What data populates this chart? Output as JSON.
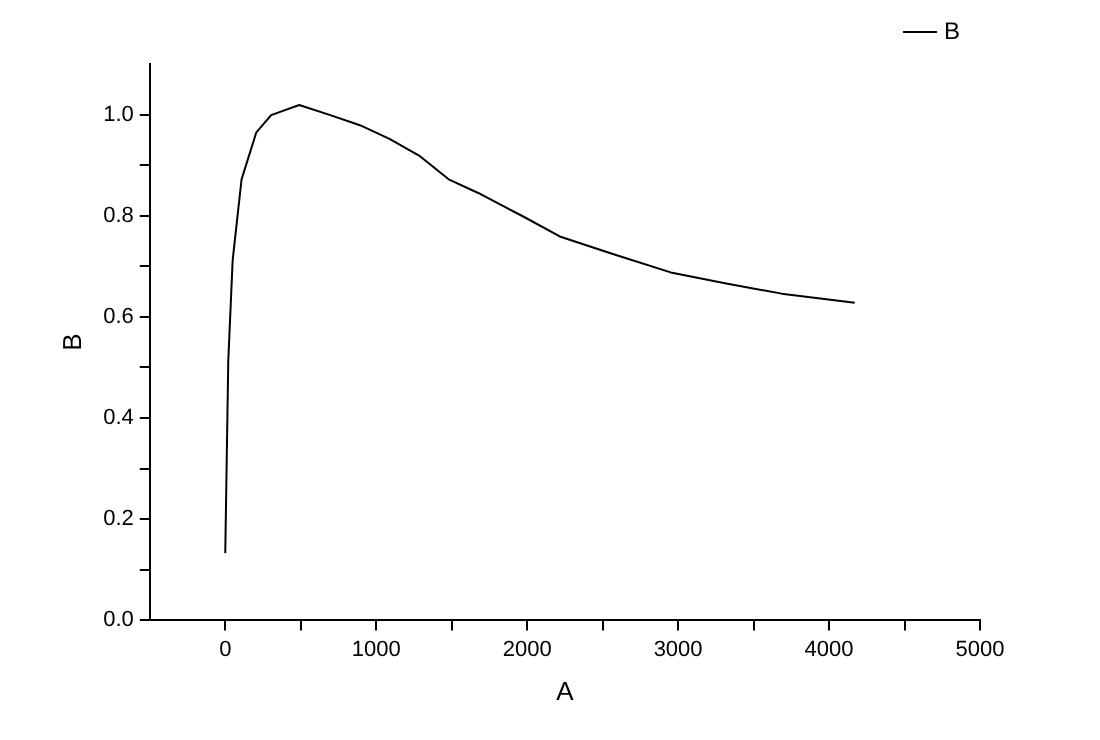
{
  "chart_data": {
    "type": "line",
    "xlabel": "A",
    "ylabel": "B",
    "x": [
      0,
      20,
      49,
      108,
      206,
      304,
      490,
      696,
      892,
      1088,
      1284,
      1480,
      1676,
      1971,
      2216,
      2583,
      2951,
      3319,
      3686,
      4170
    ],
    "series": [
      {
        "name": "B",
        "color": "#000000",
        "values": [
          0.133,
          0.513,
          0.712,
          0.872,
          0.965,
          0.999,
          1.019,
          0.999,
          0.979,
          0.952,
          0.919,
          0.872,
          0.845,
          0.799,
          0.759,
          0.723,
          0.688,
          0.666,
          0.646,
          0.628
        ]
      }
    ],
    "xlim": [
      -500,
      5000
    ],
    "ylim": [
      0,
      1.1
    ],
    "xticks": [
      0,
      {
        "value": 500,
        "label": null
      },
      1000,
      {
        "value": 1500,
        "label": null
      },
      2000,
      {
        "value": 2500,
        "label": null
      },
      3000,
      {
        "value": 3500,
        "label": null
      },
      4000,
      {
        "value": 4500,
        "label": null
      },
      5000
    ],
    "yticks": [
      {
        "value": 0,
        "label": "0.0"
      },
      {
        "value": 0.1,
        "label": null
      },
      {
        "value": 0.2,
        "label": "0.2"
      },
      {
        "value": 0.3,
        "label": null
      },
      {
        "value": 0.4,
        "label": "0.4"
      },
      {
        "value": 0.5,
        "label": null
      },
      {
        "value": 0.6,
        "label": "0.6"
      },
      {
        "value": 0.7,
        "label": null
      },
      {
        "value": 0.8,
        "label": "0.8"
      },
      {
        "value": 0.9,
        "label": null
      },
      {
        "value": 1,
        "label": "1.0"
      }
    ],
    "grid": false,
    "legend": "top right",
    "marker": "none",
    "line_style": "solid"
  }
}
